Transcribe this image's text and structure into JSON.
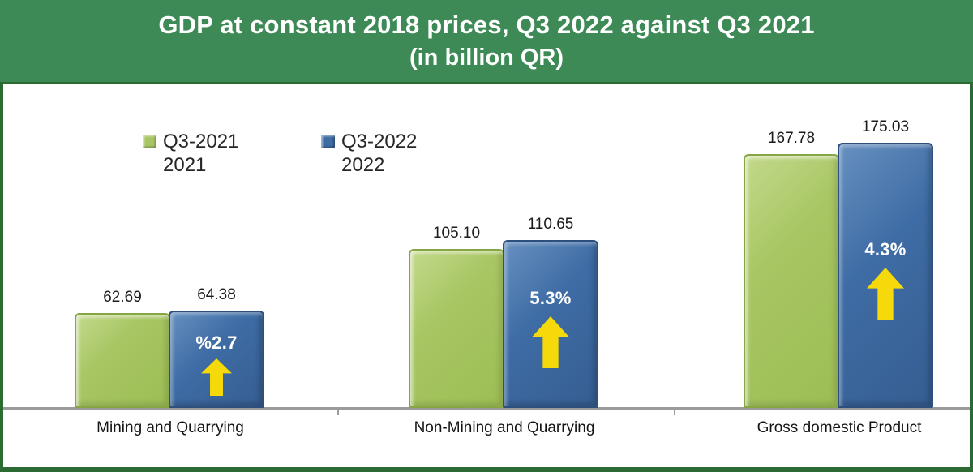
{
  "title": {
    "line1": "GDP at constant 2018 prices, Q3 2022 against Q3 2021",
    "line2": "(in billion QR)"
  },
  "legend": [
    {
      "label": "Q3-2021",
      "sublabel": "2021",
      "color": "#a8c663"
    },
    {
      "label": "Q3-2022",
      "sublabel": "2022",
      "color": "#3e6ca4"
    }
  ],
  "chart_data": {
    "type": "bar",
    "title": "GDP at constant 2018 prices, Q3 2022 against Q3 2021 (in billion QR)",
    "categories": [
      "Mining and Quarrying",
      "Non-Mining and Quarrying",
      "Gross domestic Product"
    ],
    "series": [
      {
        "name": "Q3-2021",
        "color": "#a8c663",
        "values": [
          62.69,
          105.1,
          167.78
        ],
        "value_labels": [
          "62.69",
          "105.10",
          "167.78"
        ]
      },
      {
        "name": "Q3-2022",
        "color": "#3e6ca4",
        "values": [
          64.38,
          110.65,
          175.03
        ],
        "value_labels": [
          "64.38",
          "110.65",
          "175.03"
        ]
      }
    ],
    "change_labels": [
      "%2.7",
      "5.3%",
      "4.3%"
    ],
    "xlabel": "",
    "ylabel": "",
    "ylim": [
      0,
      214
    ],
    "grid": false,
    "legend_position": "inside-top-left",
    "annotations": "yellow up arrows inside Q3-2022 bars indicating growth"
  },
  "colors": {
    "banner_green": "#3d8a56",
    "frame_green": "#2b6a33",
    "bar_green": "#a8c663",
    "bar_blue": "#3e6ca4",
    "arrow_yellow": "#f6d90a",
    "axis_gray": "#9b9b9b",
    "title_text": "#ffffff",
    "label_text": "#1b1b1b"
  }
}
